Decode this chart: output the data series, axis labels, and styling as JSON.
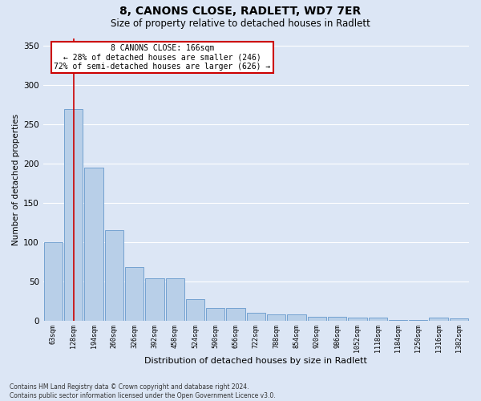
{
  "title": "8, CANONS CLOSE, RADLETT, WD7 7ER",
  "subtitle": "Size of property relative to detached houses in Radlett",
  "xlabel": "Distribution of detached houses by size in Radlett",
  "ylabel": "Number of detached properties",
  "bar_values": [
    100,
    270,
    195,
    115,
    68,
    54,
    54,
    27,
    16,
    16,
    10,
    8,
    8,
    5,
    5,
    4,
    4,
    1,
    1,
    4,
    3
  ],
  "bin_labels": [
    "63sqm",
    "128sqm",
    "194sqm",
    "260sqm",
    "326sqm",
    "392sqm",
    "458sqm",
    "524sqm",
    "590sqm",
    "656sqm",
    "722sqm",
    "788sqm",
    "854sqm",
    "920sqm",
    "986sqm",
    "1052sqm",
    "1118sqm",
    "1184sqm",
    "1250sqm",
    "1316sqm",
    "1382sqm"
  ],
  "bar_color": "#b8cfe8",
  "bar_edge_color": "#6699cc",
  "background_color": "#dce6f5",
  "grid_color": "#ffffff",
  "property_line_x": 1.0,
  "property_line_color": "#cc0000",
  "annotation_text": "8 CANONS CLOSE: 166sqm\n← 28% of detached houses are smaller (246)\n72% of semi-detached houses are larger (626) →",
  "annotation_box_color": "#cc0000",
  "ylim": [
    0,
    360
  ],
  "yticks": [
    0,
    50,
    100,
    150,
    200,
    250,
    300,
    350
  ],
  "footnote": "Contains HM Land Registry data © Crown copyright and database right 2024.\nContains public sector information licensed under the Open Government Licence v3.0."
}
